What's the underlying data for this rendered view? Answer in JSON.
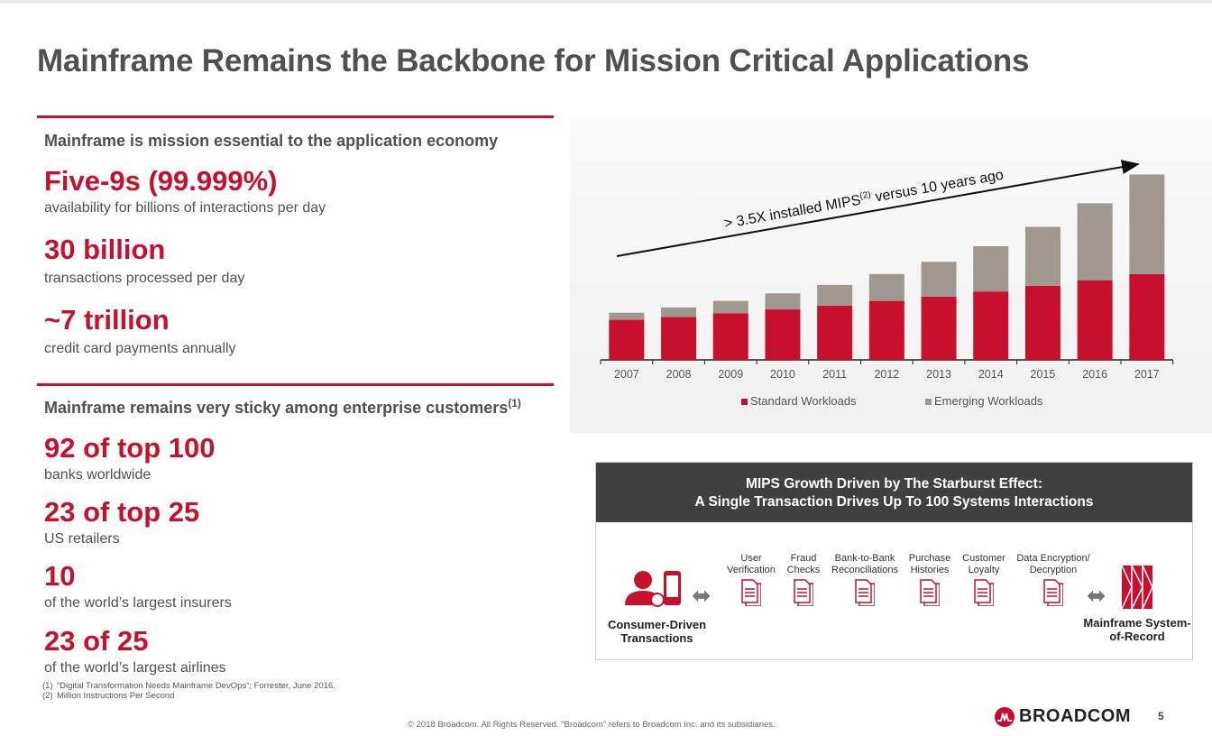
{
  "title": "Mainframe Remains the Backbone for Mission Critical Applications",
  "left": {
    "section1": {
      "heading": "Mainframe is mission essential to the application economy",
      "stats": [
        {
          "value": "Five-9s (99.999%)",
          "desc": "availability for billions of interactions per day"
        },
        {
          "value": "30 billion",
          "desc": "transactions processed per day"
        },
        {
          "value": "~7 trillion",
          "desc": "credit card payments annually"
        }
      ]
    },
    "section2": {
      "heading": "Mainframe remains very sticky among enterprise customers",
      "heading_sup": "(1)",
      "stats": [
        {
          "value": "92 of top 100",
          "desc": "banks worldwide"
        },
        {
          "value": "23 of top 25",
          "desc": "US retailers"
        },
        {
          "value": "10",
          "desc": "of the world’s largest insurers"
        },
        {
          "value": "23 of 25",
          "desc": "of the world’s largest airlines"
        }
      ]
    },
    "footnotes": [
      {
        "num": "(1)",
        "text": "“Digital Transformation Needs Mainframe DevOps”; Forrester, June 2016."
      },
      {
        "num": "(2)",
        "text": "Million Instructions Per Second"
      }
    ]
  },
  "chart_data": {
    "type": "bar",
    "stacked": true,
    "categories": [
      "2007",
      "2008",
      "2009",
      "2010",
      "2011",
      "2012",
      "2013",
      "2014",
      "2015",
      "2016",
      "2017"
    ],
    "series": [
      {
        "name": "Standard Workloads",
        "color": "#c8102e",
        "values": [
          0.85,
          0.91,
          0.99,
          1.07,
          1.15,
          1.25,
          1.34,
          1.45,
          1.57,
          1.69,
          1.82
        ]
      },
      {
        "name": "Emerging Workloads",
        "color": "#a09890",
        "values": [
          0.15,
          0.2,
          0.26,
          0.34,
          0.44,
          0.57,
          0.74,
          0.96,
          1.25,
          1.63,
          2.11
        ]
      }
    ],
    "annotation": {
      "text": "> 3.5X installed MIPS",
      "sup": "(2)",
      "text2": " versus 10 years ago"
    },
    "legend": "bottom",
    "grid": false,
    "yaxis_visible": false
  },
  "starburst": {
    "title_line1": "MIPS Growth Driven by The Starburst Effect:",
    "title_line2": "A Single Transaction Drives Up To 100 Systems Interactions",
    "left_label": "Consumer-Driven Transactions",
    "right_label": "Mainframe System-of-Record",
    "steps": [
      {
        "l1": "User",
        "l2": "Verification"
      },
      {
        "l1": "Fraud",
        "l2": "Checks"
      },
      {
        "l1": "Bank-to-Bank",
        "l2": "Reconciliations"
      },
      {
        "l1": "Purchase",
        "l2": "Histories"
      },
      {
        "l1": "Customer",
        "l2": "Loyalty"
      },
      {
        "l1": "Data Encryption/",
        "l2": "Decryption"
      }
    ]
  },
  "footer": {
    "copyright": "© 2018 Broadcom.  All Rights Reserved.  \"Broadcom\" refers to Broadcom Inc. and its subsidiaries.",
    "logo_text": "BROADCOM",
    "page": "5"
  },
  "colors": {
    "accent": "#c8102e",
    "dark": "#404040"
  }
}
